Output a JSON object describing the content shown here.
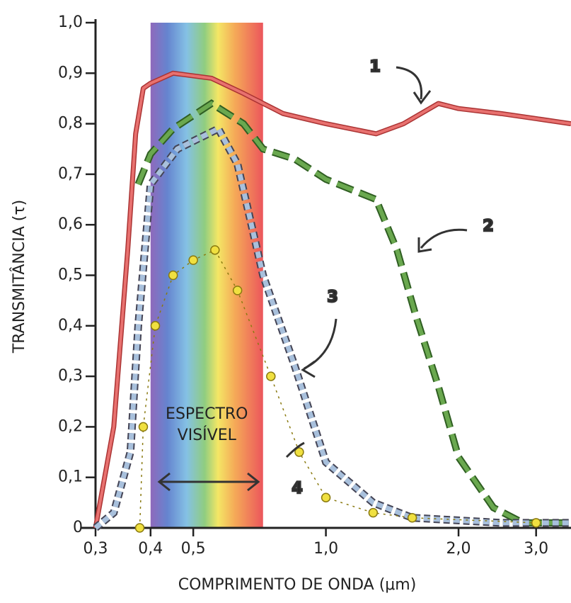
{
  "chart_data": {
    "type": "line",
    "x_label": "COMPRIMENTO DE ONDA (μm)",
    "y_label": "TRANSMITÂNCIA (τ)",
    "log_x": true,
    "xlim": [
      0.3,
      3.6
    ],
    "xticks": [
      {
        "value": 0.3,
        "label": "0,3"
      },
      {
        "value": 0.4,
        "label": "0,4"
      },
      {
        "value": 0.5,
        "label": "0,5"
      },
      {
        "value": 1.0,
        "label": "1,0"
      },
      {
        "value": 2.0,
        "label": "2,0"
      },
      {
        "value": 3.0,
        "label": "3,0"
      }
    ],
    "ylim": [
      0,
      1.0
    ],
    "yticks": [
      0,
      {
        "value": 0.1,
        "label": "0,1"
      },
      {
        "value": 0.2,
        "label": "0,2"
      },
      {
        "value": 0.3,
        "label": "0,3"
      },
      {
        "value": 0.4,
        "label": "0,4"
      },
      {
        "value": 0.5,
        "label": "0,5"
      },
      {
        "value": 0.6,
        "label": "0,6"
      },
      {
        "value": 0.7,
        "label": "0,7"
      },
      {
        "value": 0.8,
        "label": "0,8"
      },
      {
        "value": 0.9,
        "label": "0,9"
      },
      {
        "value": 1.0,
        "label": "1,0"
      }
    ],
    "visible_spectrum": {
      "label_lines": [
        "ESPECTRO",
        "VISÍVEL"
      ],
      "range": [
        0.4,
        0.72
      ]
    },
    "series": [
      {
        "name": "1",
        "color": "#e8716f",
        "style": "solid",
        "x": [
          0.3,
          0.33,
          0.355,
          0.37,
          0.385,
          0.4,
          0.45,
          0.55,
          0.65,
          0.8,
          1.0,
          1.3,
          1.5,
          1.8,
          2.0,
          2.5,
          3.0,
          3.6
        ],
        "values": [
          0,
          0.2,
          0.55,
          0.78,
          0.87,
          0.88,
          0.9,
          0.89,
          0.86,
          0.82,
          0.8,
          0.78,
          0.8,
          0.84,
          0.83,
          0.82,
          0.81,
          0.8
        ]
      },
      {
        "name": "2",
        "color": "#6aa84f",
        "style": "dashed",
        "x": [
          0.375,
          0.4,
          0.45,
          0.55,
          0.65,
          0.72,
          0.85,
          1.0,
          1.3,
          1.45,
          1.6,
          1.8,
          2.0,
          2.4,
          2.8,
          3.6
        ],
        "values": [
          0.68,
          0.74,
          0.79,
          0.84,
          0.8,
          0.75,
          0.73,
          0.69,
          0.65,
          0.55,
          0.42,
          0.28,
          0.14,
          0.04,
          0.01,
          0.01
        ]
      },
      {
        "name": "3",
        "color": "#a8c0dc",
        "style": "squares",
        "x": [
          0.3,
          0.33,
          0.36,
          0.375,
          0.4,
          0.46,
          0.57,
          0.63,
          0.72,
          0.85,
          1.0,
          1.28,
          1.57,
          2.5,
          3.6
        ],
        "values": [
          0,
          0.03,
          0.15,
          0.4,
          0.68,
          0.75,
          0.79,
          0.72,
          0.5,
          0.32,
          0.13,
          0.05,
          0.02,
          0.01,
          0.01
        ]
      },
      {
        "name": "4",
        "color": "#f0e040",
        "style": "dots",
        "x": [
          0.378,
          0.385,
          0.41,
          0.45,
          0.5,
          0.56,
          0.63,
          0.75,
          0.87,
          1.0,
          1.28,
          1.57,
          3.0
        ],
        "values": [
          0,
          0.2,
          0.4,
          0.5,
          0.53,
          0.55,
          0.47,
          0.3,
          0.15,
          0.06,
          0.03,
          0.02,
          0.01
        ]
      }
    ]
  }
}
